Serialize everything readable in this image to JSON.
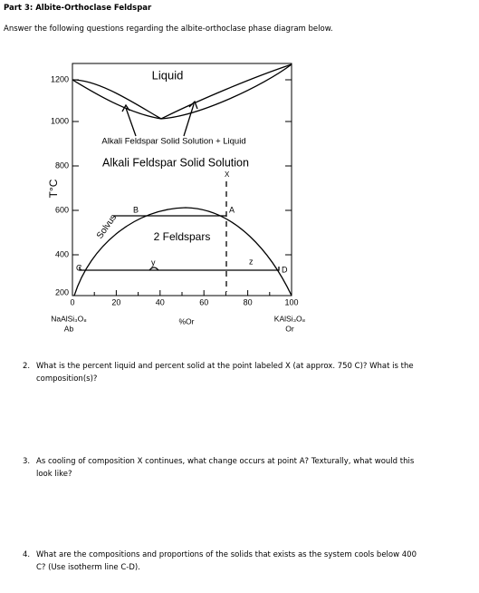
{
  "header": {
    "title": "Part 3: Albite-Orthoclase Feldspar",
    "instructions": "Answer the following questions regarding the albite-orthoclase phase diagram below."
  },
  "diagram": {
    "y_axis_label": "T°C",
    "x_axis_label": "%Or",
    "yticks": [
      1200,
      1000,
      800,
      600,
      400,
      200
    ],
    "xticks": [
      0,
      20,
      40,
      60,
      80,
      100
    ],
    "left_end": {
      "formula": "NaAlSi₃O₈",
      "abbr": "Ab"
    },
    "right_end": {
      "formula": "KAlSi₃O₈",
      "abbr": "Or"
    },
    "regions": {
      "liquid": "Liquid",
      "solid_liquid": "Alkali Feldspar Solid Solution + Liquid",
      "solid": "Alkali Feldspar Solid Solution",
      "two_feldspars": "2 Feldspars"
    },
    "solvus_label": "Solvus",
    "points": {
      "A": "A",
      "B": "B",
      "C": "C",
      "D": "D",
      "X": "X",
      "y": "y",
      "z": "z"
    }
  },
  "questions": [
    {
      "number": "2.",
      "text": "What is the percent liquid and percent solid at the point labeled X (at approx. 750 C)? What is the composition(s)?"
    },
    {
      "number": "3.",
      "text": "As cooling of composition X continues, what change occurs at point A? Texturally, what would this look like?"
    },
    {
      "number": "4.",
      "text": "What are the compositions and proportions of the solids that exists as the system cools below 400 C? (Use isotherm line C-D)."
    }
  ]
}
